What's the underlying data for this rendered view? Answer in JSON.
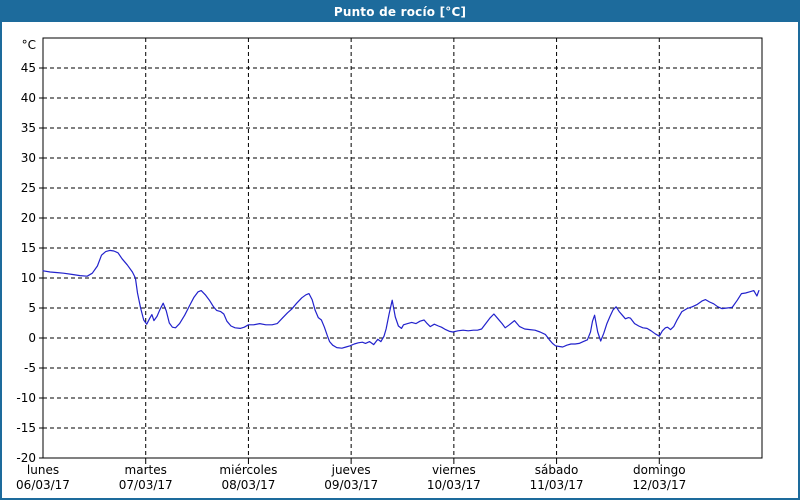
{
  "window": {
    "title": "Punto de rocío [°C]"
  },
  "colors": {
    "titlebar": "#1d6b9c",
    "border": "#1d6b9c",
    "background": "#ffffff",
    "grid": "#000000",
    "frame": "#000000",
    "line": "#2222cc",
    "text": "#000000",
    "title_text": "#ffffff"
  },
  "chart_data": {
    "type": "line",
    "title": "Punto de rocío [°C]",
    "ylabel": "°C",
    "xlabel": "",
    "ylim": [
      -20,
      50
    ],
    "y_ticks": [
      45,
      40,
      35,
      30,
      25,
      20,
      15,
      10,
      5,
      0,
      -5,
      -10,
      -15,
      -20
    ],
    "x_range_days": [
      0,
      7
    ],
    "grid": "dashed",
    "legend": "none",
    "x_days": [
      {
        "name": "lunes",
        "date": "06/03/17"
      },
      {
        "name": "martes",
        "date": "07/03/17"
      },
      {
        "name": "miércoles",
        "date": "08/03/17"
      },
      {
        "name": "jueves",
        "date": "09/03/17"
      },
      {
        "name": "viernes",
        "date": "10/03/17"
      },
      {
        "name": "sábado",
        "date": "11/03/17"
      },
      {
        "name": "domingo",
        "date": "12/03/17"
      }
    ],
    "series": [
      {
        "name": "Punto de rocío",
        "color": "#2222cc",
        "points": [
          [
            0.0,
            11.2
          ],
          [
            0.07,
            11.0
          ],
          [
            0.14,
            10.9
          ],
          [
            0.2,
            10.8
          ],
          [
            0.28,
            10.6
          ],
          [
            0.36,
            10.4
          ],
          [
            0.43,
            10.3
          ],
          [
            0.48,
            10.8
          ],
          [
            0.53,
            12.0
          ],
          [
            0.57,
            13.8
          ],
          [
            0.61,
            14.4
          ],
          [
            0.65,
            14.6
          ],
          [
            0.69,
            14.5
          ],
          [
            0.73,
            14.2
          ],
          [
            0.77,
            13.2
          ],
          [
            0.82,
            12.2
          ],
          [
            0.87,
            11.0
          ],
          [
            0.9,
            10.0
          ],
          [
            0.92,
            7.5
          ],
          [
            0.95,
            5.0
          ],
          [
            0.98,
            3.0
          ],
          [
            1.01,
            2.3
          ],
          [
            1.04,
            3.3
          ],
          [
            1.06,
            3.9
          ],
          [
            1.08,
            2.9
          ],
          [
            1.11,
            3.6
          ],
          [
            1.14,
            4.8
          ],
          [
            1.17,
            5.8
          ],
          [
            1.2,
            4.5
          ],
          [
            1.23,
            2.5
          ],
          [
            1.26,
            1.8
          ],
          [
            1.29,
            1.7
          ],
          [
            1.33,
            2.4
          ],
          [
            1.38,
            3.8
          ],
          [
            1.43,
            5.5
          ],
          [
            1.47,
            6.8
          ],
          [
            1.51,
            7.7
          ],
          [
            1.54,
            7.9
          ],
          [
            1.58,
            7.2
          ],
          [
            1.62,
            6.3
          ],
          [
            1.66,
            5.2
          ],
          [
            1.69,
            4.6
          ],
          [
            1.73,
            4.4
          ],
          [
            1.76,
            4.0
          ],
          [
            1.79,
            2.8
          ],
          [
            1.83,
            2.0
          ],
          [
            1.87,
            1.7
          ],
          [
            1.92,
            1.6
          ],
          [
            1.96,
            1.8
          ],
          [
            2.0,
            2.2
          ],
          [
            2.05,
            2.2
          ],
          [
            2.11,
            2.4
          ],
          [
            2.17,
            2.2
          ],
          [
            2.23,
            2.2
          ],
          [
            2.28,
            2.4
          ],
          [
            2.33,
            3.3
          ],
          [
            2.38,
            4.2
          ],
          [
            2.42,
            4.8
          ],
          [
            2.47,
            5.8
          ],
          [
            2.52,
            6.7
          ],
          [
            2.56,
            7.2
          ],
          [
            2.59,
            7.4
          ],
          [
            2.62,
            6.4
          ],
          [
            2.65,
            4.6
          ],
          [
            2.68,
            3.4
          ],
          [
            2.71,
            3.0
          ],
          [
            2.74,
            1.8
          ],
          [
            2.77,
            0.3
          ],
          [
            2.79,
            -0.6
          ],
          [
            2.82,
            -1.2
          ],
          [
            2.86,
            -1.6
          ],
          [
            2.91,
            -1.7
          ],
          [
            2.95,
            -1.5
          ],
          [
            2.99,
            -1.3
          ],
          [
            3.03,
            -1.0
          ],
          [
            3.07,
            -0.8
          ],
          [
            3.11,
            -0.7
          ],
          [
            3.14,
            -0.9
          ],
          [
            3.18,
            -0.6
          ],
          [
            3.22,
            -1.1
          ],
          [
            3.26,
            -0.2
          ],
          [
            3.29,
            -0.6
          ],
          [
            3.32,
            0.3
          ],
          [
            3.34,
            1.5
          ],
          [
            3.37,
            4.0
          ],
          [
            3.4,
            6.3
          ],
          [
            3.43,
            3.5
          ],
          [
            3.46,
            2.0
          ],
          [
            3.49,
            1.6
          ],
          [
            3.51,
            2.2
          ],
          [
            3.55,
            2.4
          ],
          [
            3.59,
            2.6
          ],
          [
            3.63,
            2.4
          ],
          [
            3.67,
            2.8
          ],
          [
            3.71,
            3.0
          ],
          [
            3.74,
            2.4
          ],
          [
            3.77,
            1.9
          ],
          [
            3.81,
            2.3
          ],
          [
            3.85,
            2.0
          ],
          [
            3.88,
            1.8
          ],
          [
            3.92,
            1.4
          ],
          [
            3.96,
            1.1
          ],
          [
            3.99,
            1.0
          ],
          [
            4.04,
            1.2
          ],
          [
            4.09,
            1.3
          ],
          [
            4.14,
            1.2
          ],
          [
            4.19,
            1.3
          ],
          [
            4.23,
            1.3
          ],
          [
            4.27,
            1.5
          ],
          [
            4.31,
            2.4
          ],
          [
            4.35,
            3.3
          ],
          [
            4.39,
            4.0
          ],
          [
            4.43,
            3.2
          ],
          [
            4.47,
            2.4
          ],
          [
            4.5,
            1.7
          ],
          [
            4.54,
            2.2
          ],
          [
            4.59,
            2.9
          ],
          [
            4.61,
            2.5
          ],
          [
            4.64,
            1.9
          ],
          [
            4.69,
            1.5
          ],
          [
            4.74,
            1.4
          ],
          [
            4.79,
            1.3
          ],
          [
            4.84,
            1.0
          ],
          [
            4.89,
            0.6
          ],
          [
            4.93,
            -0.3
          ],
          [
            4.96,
            -0.9
          ],
          [
            4.99,
            -1.3
          ],
          [
            5.02,
            -1.4
          ],
          [
            5.06,
            -1.5
          ],
          [
            5.1,
            -1.2
          ],
          [
            5.14,
            -1.0
          ],
          [
            5.18,
            -1.0
          ],
          [
            5.22,
            -0.9
          ],
          [
            5.26,
            -0.6
          ],
          [
            5.3,
            -0.3
          ],
          [
            5.33,
            1.0
          ],
          [
            5.35,
            2.8
          ],
          [
            5.37,
            3.8
          ],
          [
            5.4,
            1.0
          ],
          [
            5.43,
            -0.5
          ],
          [
            5.46,
            0.8
          ],
          [
            5.49,
            2.4
          ],
          [
            5.52,
            3.6
          ],
          [
            5.55,
            4.7
          ],
          [
            5.58,
            5.2
          ],
          [
            5.61,
            4.4
          ],
          [
            5.64,
            3.8
          ],
          [
            5.67,
            3.2
          ],
          [
            5.7,
            3.4
          ],
          [
            5.72,
            3.3
          ],
          [
            5.76,
            2.4
          ],
          [
            5.8,
            2.0
          ],
          [
            5.84,
            1.7
          ],
          [
            5.88,
            1.6
          ],
          [
            5.92,
            1.2
          ],
          [
            5.96,
            0.7
          ],
          [
            6.0,
            0.3
          ],
          [
            6.03,
            1.2
          ],
          [
            6.06,
            1.7
          ],
          [
            6.08,
            1.8
          ],
          [
            6.11,
            1.4
          ],
          [
            6.14,
            1.9
          ],
          [
            6.17,
            2.9
          ],
          [
            6.22,
            4.4
          ],
          [
            6.27,
            4.9
          ],
          [
            6.32,
            5.2
          ],
          [
            6.37,
            5.6
          ],
          [
            6.42,
            6.2
          ],
          [
            6.45,
            6.4
          ],
          [
            6.49,
            6.0
          ],
          [
            6.53,
            5.7
          ],
          [
            6.57,
            5.2
          ],
          [
            6.61,
            4.9
          ],
          [
            6.66,
            5.0
          ],
          [
            6.71,
            5.1
          ],
          [
            6.76,
            6.3
          ],
          [
            6.8,
            7.4
          ],
          [
            6.84,
            7.5
          ],
          [
            6.88,
            7.7
          ],
          [
            6.92,
            7.9
          ],
          [
            6.95,
            7.0
          ],
          [
            6.97,
            7.9
          ]
        ]
      }
    ]
  }
}
